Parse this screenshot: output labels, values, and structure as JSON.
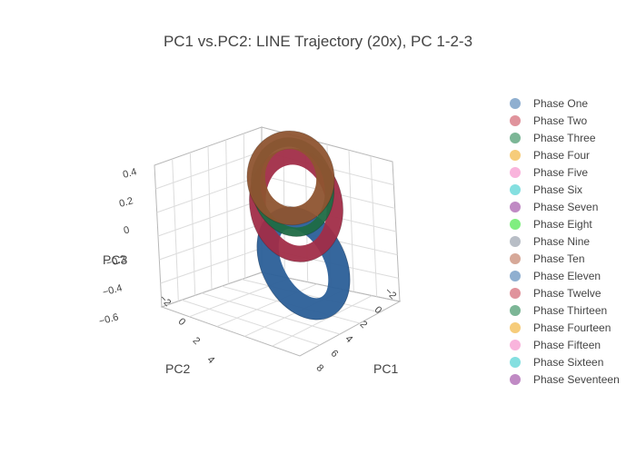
{
  "chart_data": {
    "type": "scatter",
    "title": "PC1 vs.PC2: LINE Trajectory (20x), PC 1-2-3",
    "axes": {
      "x": {
        "title": "PC1",
        "ticks": [
          "8",
          "6",
          "4",
          "2",
          "0",
          "−2"
        ]
      },
      "y": {
        "title": "PC2",
        "ticks": [
          "−2",
          "0",
          "2",
          "4"
        ]
      },
      "z": {
        "title": "PC3",
        "ticks": [
          "0.4",
          "0.2",
          "0",
          "−0.2",
          "−0.4",
          "−0.6"
        ]
      }
    },
    "legend_position": "right",
    "series": [
      {
        "name": "Phase One",
        "color": "#8fafd0"
      },
      {
        "name": "Phase Two",
        "color": "#e0939c"
      },
      {
        "name": "Phase Three",
        "color": "#7cb696"
      },
      {
        "name": "Phase Four",
        "color": "#f6cc7a"
      },
      {
        "name": "Phase Five",
        "color": "#f9b4dc"
      },
      {
        "name": "Phase Six",
        "color": "#84dfe0"
      },
      {
        "name": "Phase Seven",
        "color": "#c08ac4"
      },
      {
        "name": "Phase Eight",
        "color": "#80ee80"
      },
      {
        "name": "Phase Nine",
        "color": "#b8bec6"
      },
      {
        "name": "Phase Ten",
        "color": "#d6a898"
      },
      {
        "name": "Phase Eleven",
        "color": "#8fafd0"
      },
      {
        "name": "Phase Twelve",
        "color": "#e0939c"
      },
      {
        "name": "Phase Thirteen",
        "color": "#7cb696"
      },
      {
        "name": "Phase Fourteen",
        "color": "#f6cc7a"
      },
      {
        "name": "Phase Fifteen",
        "color": "#f9b4dc"
      },
      {
        "name": "Phase Sixteen",
        "color": "#84dfe0"
      },
      {
        "name": "Phase Seventeen",
        "color": "#c08ac4"
      }
    ],
    "rings": [
      {
        "series": "Phase One",
        "color": "#2b5f98"
      },
      {
        "series": "Phase Two",
        "color": "#a12d48"
      },
      {
        "series": "Phase Three",
        "color": "#1f6b45"
      },
      {
        "series": "Phase Ten",
        "color": "#8e5430"
      }
    ]
  }
}
